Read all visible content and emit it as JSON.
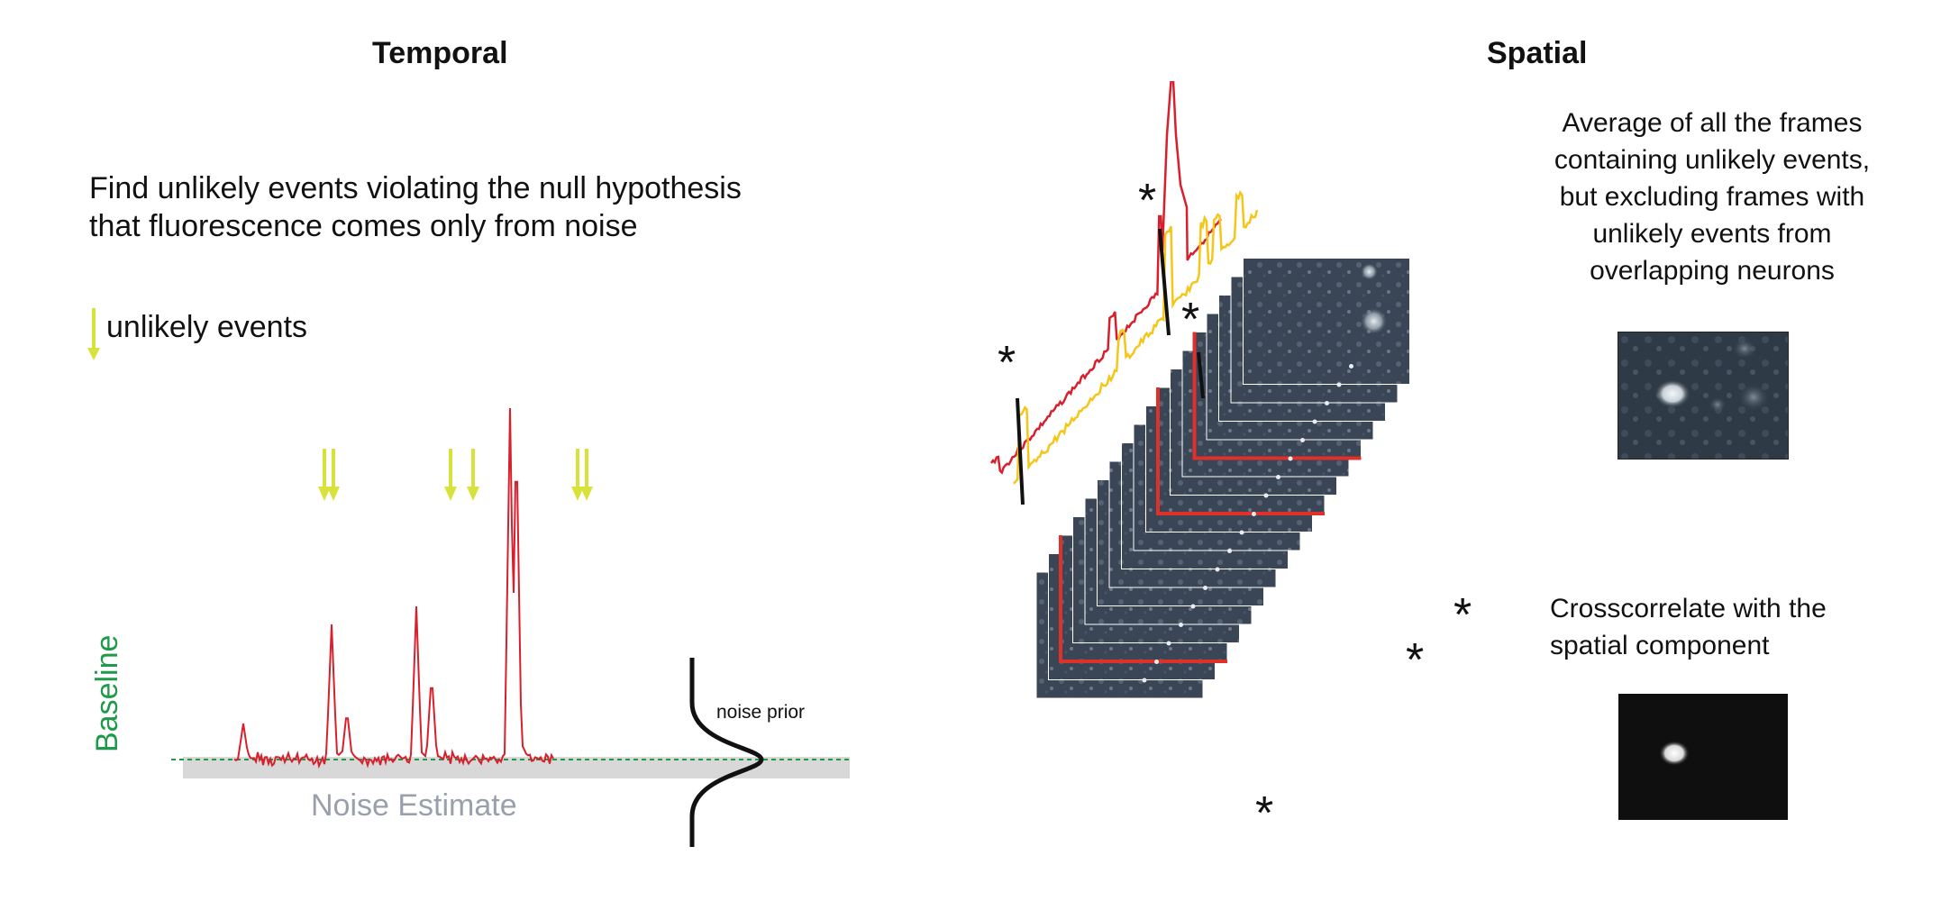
{
  "temporal": {
    "title": "Temporal",
    "description_line1": "Find unlikely events violating the null hypothesis",
    "description_line2": "that fluorescence comes only from noise",
    "legend_label": "unlikely events",
    "baseline_label": "Baseline",
    "noise_estimate_label": "Noise Estimate",
    "noise_prior_label": "noise prior"
  },
  "spatial": {
    "title": "Spatial",
    "average_text": [
      "Average of all the frames",
      "containing unlikely events,",
      "but excluding frames with",
      "unlikely events from",
      "overlapping neurons"
    ],
    "crosscorrelate_text": [
      "Crosscorrelate with the",
      "spatial component"
    ],
    "asterisk": "*"
  },
  "colors": {
    "trace_red": "#d8202c",
    "trace_yellow": "#f5c518",
    "arrow_yellow": "#d7e33a",
    "baseline_green": "#1f9a4a",
    "noise_gray": "#d8d8d8",
    "noise_text_gray": "#9aa0ab",
    "frame_highlight": "#e0302a"
  }
}
